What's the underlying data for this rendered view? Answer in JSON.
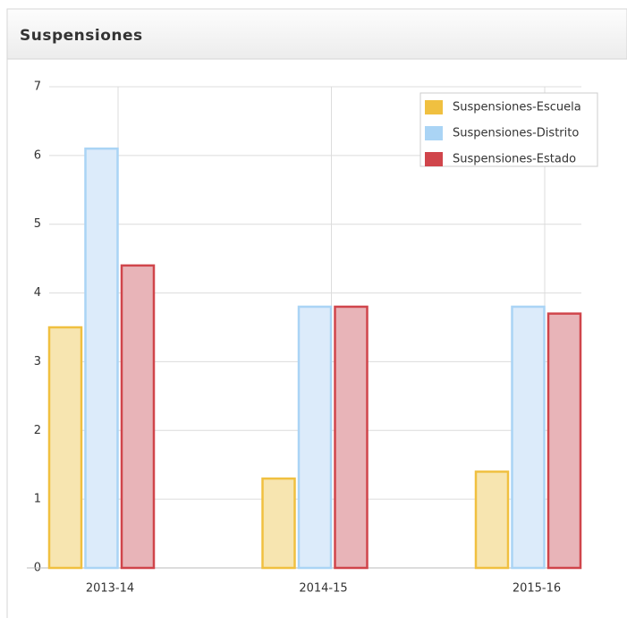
{
  "header": {
    "title": "Suspensiones"
  },
  "chart_data": {
    "type": "bar",
    "categories": [
      "2013-14",
      "2014-15",
      "2015-16"
    ],
    "series": [
      {
        "name": "Suspensiones-Escuela",
        "color": "#f0c040",
        "fill": "#f7e5b0",
        "values": [
          3.5,
          1.3,
          1.4
        ]
      },
      {
        "name": "Suspensiones-Distrito",
        "color": "#aad4f5",
        "fill": "#dcebfa",
        "values": [
          6.1,
          3.8,
          3.8
        ]
      },
      {
        "name": "Suspensiones-Estado",
        "color": "#d0454b",
        "fill": "#e8b4b8",
        "values": [
          4.4,
          3.8,
          3.7
        ]
      }
    ],
    "ylim": [
      0,
      7
    ],
    "yticks": [
      0,
      1,
      2,
      3,
      4,
      5,
      6,
      7
    ],
    "grid": true,
    "legend": "top-right"
  }
}
